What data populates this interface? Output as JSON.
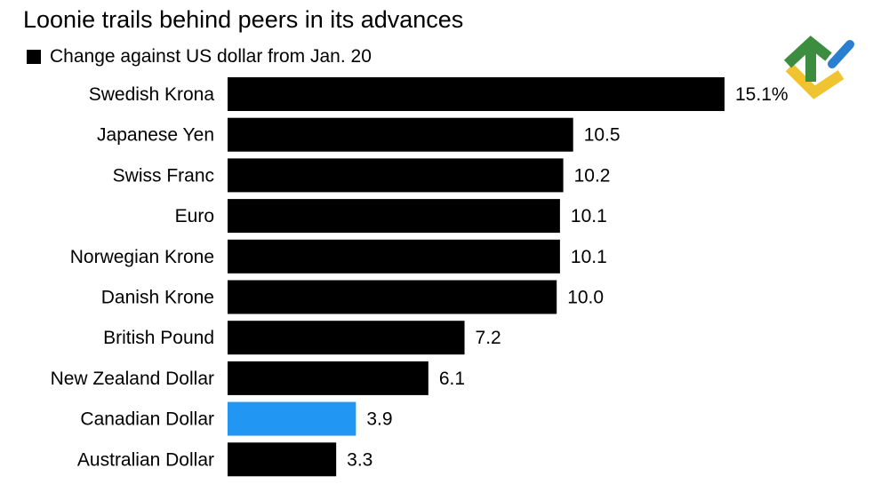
{
  "chart_data": {
    "type": "bar",
    "orientation": "horizontal",
    "title": "Loonie trails behind peers in its advances",
    "legend": {
      "label": "Change against US dollar from Jan. 20",
      "placement": "top-left"
    },
    "categories": [
      "Swedish Krona",
      "Japanese Yen",
      "Swiss Franc",
      "Euro",
      "Norwegian Krone",
      "Danish Krone",
      "British Pound",
      "New Zealand Dollar",
      "Canadian Dollar",
      "Australian Dollar"
    ],
    "values": [
      15.1,
      10.5,
      10.2,
      10.1,
      10.1,
      10.0,
      7.2,
      6.1,
      3.9,
      3.3
    ],
    "value_labels": [
      "15.1%",
      "10.5",
      "10.2",
      "10.1",
      "10.1",
      "10.0",
      "7.2",
      "6.1",
      "3.9",
      "3.3"
    ],
    "highlight_index": 8,
    "colors": {
      "bar": "#000000",
      "highlight": "#2196f3",
      "text": "#000000"
    },
    "xlim": [
      0,
      15.1
    ],
    "grid": false
  },
  "logo": {
    "name": "brand-logo",
    "colors": [
      "#3c8d3f",
      "#2a7fd1",
      "#f0c330"
    ]
  }
}
